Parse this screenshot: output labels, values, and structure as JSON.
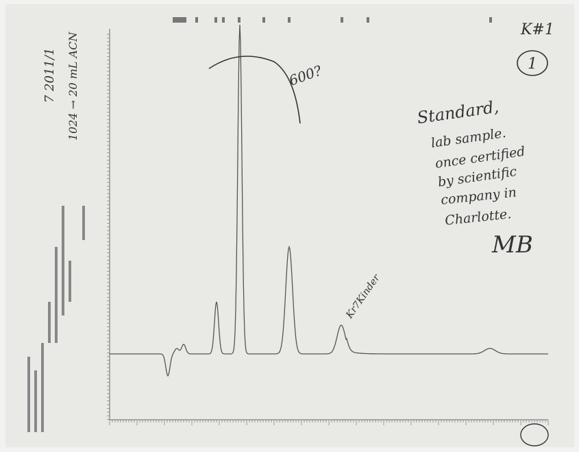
{
  "notes": {
    "sample_id": "K#1",
    "page_circle": "1",
    "peak_question": "600?",
    "peak_note": "Kr7Kinder",
    "left_note_1": "7 2011/1",
    "left_note_2": "1024 → 20 mL ACN",
    "standard_lines": [
      "Standard,",
      "lab sample.",
      "once certified",
      "by scientific",
      "company in",
      "Charlotte."
    ],
    "signature": "MB"
  }
}
